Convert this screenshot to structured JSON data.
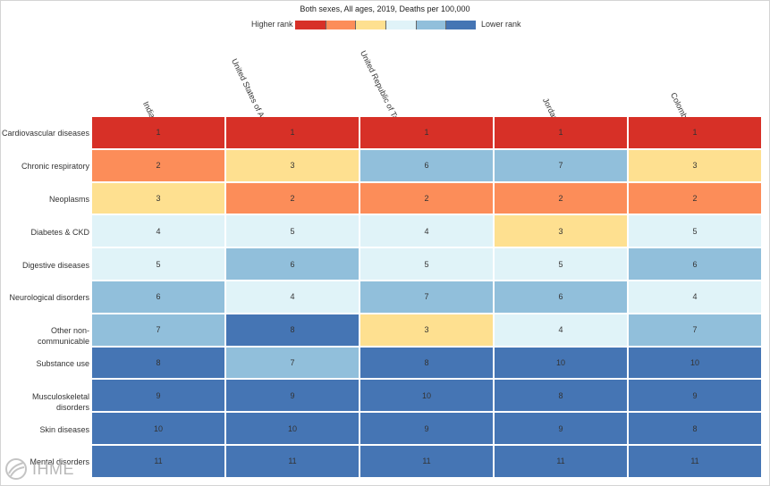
{
  "chart_data": {
    "type": "heatmap",
    "title": "Both sexes, All ages, 2019, Deaths per 100,000",
    "legend": {
      "high_label": "Higher rank",
      "low_label": "Lower rank",
      "placement": "top-center"
    },
    "columns": [
      "India",
      "United States of America",
      "United Republic of Tanzania",
      "Jordan",
      "Colombia"
    ],
    "rows": [
      "Cardiovascular diseases",
      "Chronic respiratory",
      "Neoplasms",
      "Diabetes & CKD",
      "Digestive diseases",
      "Neurological disorders",
      "Other non-communicable",
      "Substance use",
      "Musculoskeletal disorders",
      "Skin diseases",
      "Mental disorders"
    ],
    "values": [
      [
        1,
        1,
        1,
        1,
        1
      ],
      [
        2,
        3,
        6,
        7,
        3
      ],
      [
        3,
        2,
        2,
        2,
        2
      ],
      [
        4,
        5,
        4,
        3,
        5
      ],
      [
        5,
        6,
        5,
        5,
        6
      ],
      [
        6,
        4,
        7,
        6,
        4
      ],
      [
        7,
        8,
        3,
        4,
        7
      ],
      [
        8,
        7,
        8,
        10,
        10
      ],
      [
        9,
        9,
        10,
        8,
        9
      ],
      [
        10,
        10,
        9,
        9,
        8
      ],
      [
        11,
        11,
        11,
        11,
        11
      ]
    ],
    "color_scale": [
      "#d73027",
      "#fc8d59",
      "#fee090",
      "#e0f3f8",
      "#91bfdb",
      "#4575b4"
    ],
    "rank_color_index": {
      "1": 0,
      "2": 1,
      "3": 2,
      "4": 3,
      "5": 3,
      "6": 4,
      "7": 4
    }
  },
  "logo": {
    "text": "IHME"
  }
}
